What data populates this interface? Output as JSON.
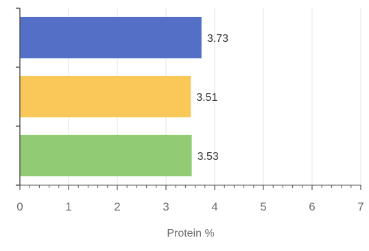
{
  "chart_data": {
    "type": "bar",
    "orientation": "horizontal",
    "categories": [
      "",
      "",
      ""
    ],
    "values": [
      3.73,
      3.51,
      3.53
    ],
    "data_labels": [
      "3.73",
      "3.51",
      "3.53"
    ],
    "xlabel": "Protein %",
    "ylabel": "",
    "xlim": [
      0,
      7
    ],
    "x_ticks": [
      "0",
      "1",
      "2",
      "3",
      "4",
      "5",
      "6",
      "7"
    ],
    "grid": "vertical",
    "legend": "none",
    "colors": [
      "#5470c6",
      "#fac858",
      "#91cc75"
    ]
  }
}
